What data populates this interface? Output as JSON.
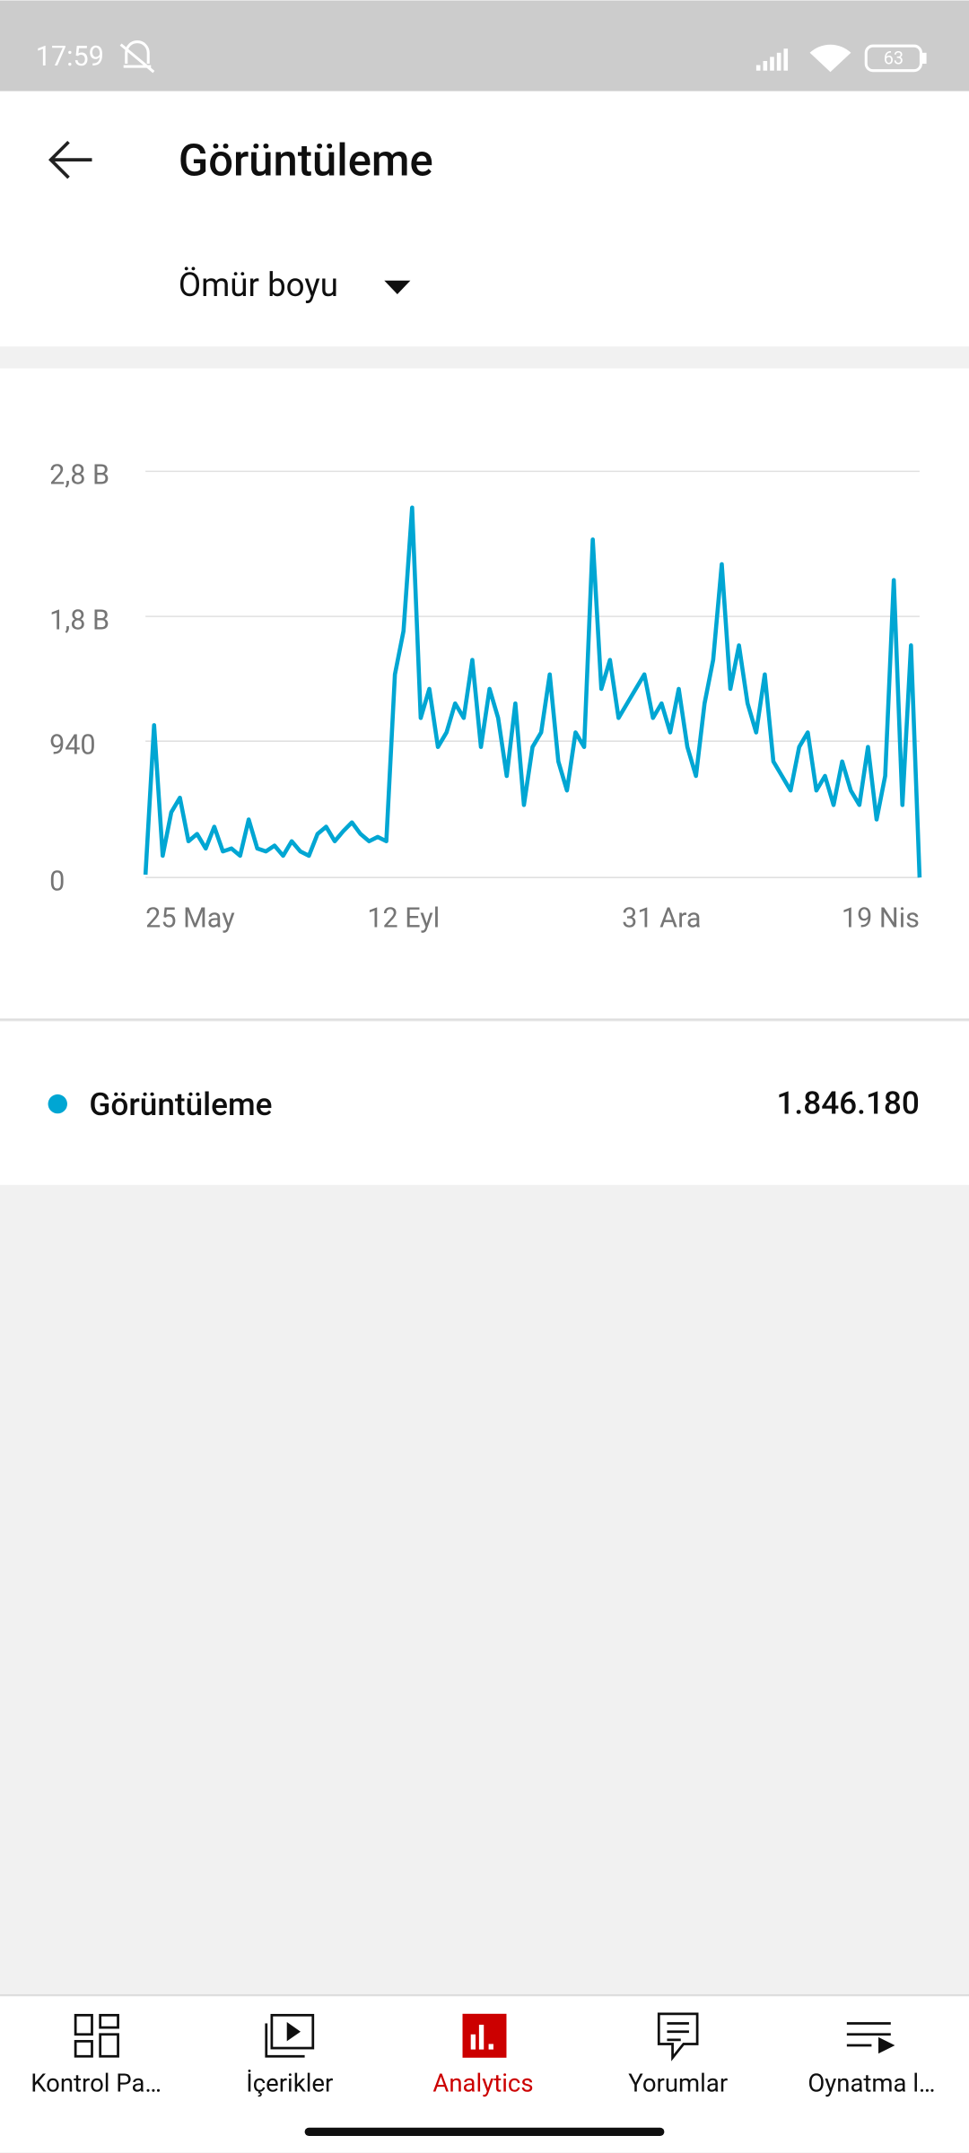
{
  "status_bar": {
    "time": "17:59",
    "battery": "63"
  },
  "header": {
    "title": "Görüntüleme",
    "period": "Ömür boyu"
  },
  "chart_data": {
    "type": "line",
    "categories": [
      "25 May",
      null,
      null,
      null,
      null,
      null,
      null,
      null,
      null,
      null,
      null,
      null,
      null,
      null,
      null,
      null,
      null,
      null,
      null,
      null,
      null,
      null,
      null,
      null,
      null,
      null,
      null,
      null,
      null,
      null,
      "12 Eyl",
      null,
      null,
      null,
      null,
      null,
      null,
      null,
      null,
      null,
      null,
      null,
      null,
      null,
      null,
      null,
      null,
      null,
      null,
      null,
      null,
      null,
      null,
      null,
      null,
      null,
      null,
      null,
      null,
      null,
      "31 Ara",
      null,
      null,
      null,
      null,
      null,
      null,
      null,
      null,
      null,
      null,
      null,
      null,
      null,
      null,
      null,
      null,
      null,
      null,
      null,
      null,
      null,
      null,
      null,
      null,
      null,
      null,
      null,
      null,
      null,
      "19 Nis"
    ],
    "series": [
      {
        "name": "Görüntüleme",
        "color": "#00a6d3",
        "values": [
          20,
          1050,
          150,
          450,
          550,
          250,
          300,
          200,
          350,
          180,
          200,
          150,
          400,
          200,
          180,
          220,
          150,
          250,
          180,
          150,
          300,
          350,
          250,
          320,
          380,
          300,
          250,
          280,
          250,
          1400,
          1700,
          2550,
          1100,
          1300,
          900,
          1000,
          1200,
          1100,
          1500,
          900,
          1300,
          1100,
          700,
          1200,
          500,
          900,
          1000,
          1400,
          800,
          600,
          1000,
          900,
          2330,
          1300,
          1500,
          1100,
          1200,
          1300,
          1400,
          1100,
          1200,
          1000,
          1300,
          900,
          700,
          1200,
          1500,
          2160,
          1300,
          1600,
          1200,
          1000,
          1400,
          800,
          700,
          600,
          900,
          1000,
          600,
          700,
          500,
          800,
          600,
          500,
          900,
          400,
          700,
          2050,
          500,
          1600,
          0
        ]
      }
    ],
    "ylim": [
      0,
      2800
    ],
    "yticks": [
      0,
      940,
      {
        "value": 1800,
        "label": "1,8 B"
      },
      {
        "value": 2800,
        "label": "2,8 B"
      }
    ],
    "grid": true
  },
  "summary_total": "1.846.180",
  "nav": [
    "Kontrol Pa…",
    "İçerikler",
    "Analytics",
    "Yorumlar",
    "Oynatma l…"
  ]
}
